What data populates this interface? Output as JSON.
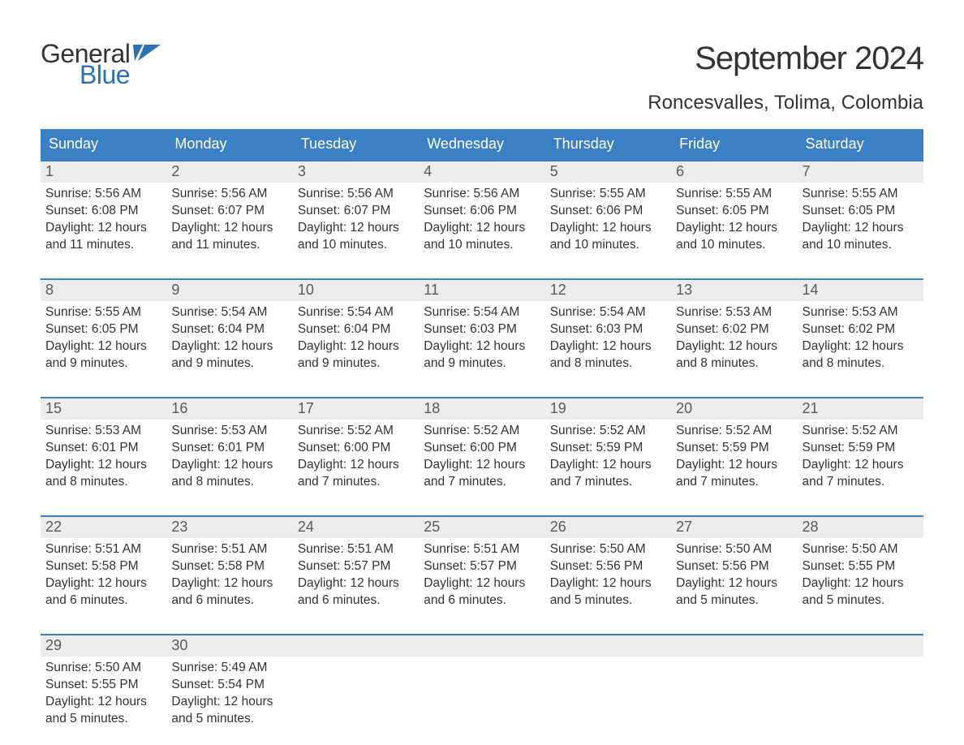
{
  "logo": {
    "word1": "General",
    "word2": "Blue",
    "word1_color": "#333333",
    "word2_color": "#2a72b5",
    "flag_color": "#2a72b5"
  },
  "title": "September 2024",
  "location": "Roncesvalles, Tolima, Colombia",
  "colors": {
    "header_bg": "#3b7fc4",
    "header_text": "#ffffff",
    "daynum_bg": "#ececec",
    "daynum_text": "#5a5a5a",
    "body_text": "#333333",
    "week_border": "#3b7fc4",
    "page_bg": "#ffffff"
  },
  "fonts": {
    "title_size_pt": 30,
    "location_size_pt": 18,
    "header_size_pt": 14,
    "daynum_size_pt": 14,
    "body_size_pt": 12,
    "family": "Arial"
  },
  "day_headers": [
    "Sunday",
    "Monday",
    "Tuesday",
    "Wednesday",
    "Thursday",
    "Friday",
    "Saturday"
  ],
  "weeks": [
    [
      {
        "num": "1",
        "sunrise": "Sunrise: 5:56 AM",
        "sunset": "Sunset: 6:08 PM",
        "daylight": "Daylight: 12 hours and 11 minutes."
      },
      {
        "num": "2",
        "sunrise": "Sunrise: 5:56 AM",
        "sunset": "Sunset: 6:07 PM",
        "daylight": "Daylight: 12 hours and 11 minutes."
      },
      {
        "num": "3",
        "sunrise": "Sunrise: 5:56 AM",
        "sunset": "Sunset: 6:07 PM",
        "daylight": "Daylight: 12 hours and 10 minutes."
      },
      {
        "num": "4",
        "sunrise": "Sunrise: 5:56 AM",
        "sunset": "Sunset: 6:06 PM",
        "daylight": "Daylight: 12 hours and 10 minutes."
      },
      {
        "num": "5",
        "sunrise": "Sunrise: 5:55 AM",
        "sunset": "Sunset: 6:06 PM",
        "daylight": "Daylight: 12 hours and 10 minutes."
      },
      {
        "num": "6",
        "sunrise": "Sunrise: 5:55 AM",
        "sunset": "Sunset: 6:05 PM",
        "daylight": "Daylight: 12 hours and 10 minutes."
      },
      {
        "num": "7",
        "sunrise": "Sunrise: 5:55 AM",
        "sunset": "Sunset: 6:05 PM",
        "daylight": "Daylight: 12 hours and 10 minutes."
      }
    ],
    [
      {
        "num": "8",
        "sunrise": "Sunrise: 5:55 AM",
        "sunset": "Sunset: 6:05 PM",
        "daylight": "Daylight: 12 hours and 9 minutes."
      },
      {
        "num": "9",
        "sunrise": "Sunrise: 5:54 AM",
        "sunset": "Sunset: 6:04 PM",
        "daylight": "Daylight: 12 hours and 9 minutes."
      },
      {
        "num": "10",
        "sunrise": "Sunrise: 5:54 AM",
        "sunset": "Sunset: 6:04 PM",
        "daylight": "Daylight: 12 hours and 9 minutes."
      },
      {
        "num": "11",
        "sunrise": "Sunrise: 5:54 AM",
        "sunset": "Sunset: 6:03 PM",
        "daylight": "Daylight: 12 hours and 9 minutes."
      },
      {
        "num": "12",
        "sunrise": "Sunrise: 5:54 AM",
        "sunset": "Sunset: 6:03 PM",
        "daylight": "Daylight: 12 hours and 8 minutes."
      },
      {
        "num": "13",
        "sunrise": "Sunrise: 5:53 AM",
        "sunset": "Sunset: 6:02 PM",
        "daylight": "Daylight: 12 hours and 8 minutes."
      },
      {
        "num": "14",
        "sunrise": "Sunrise: 5:53 AM",
        "sunset": "Sunset: 6:02 PM",
        "daylight": "Daylight: 12 hours and 8 minutes."
      }
    ],
    [
      {
        "num": "15",
        "sunrise": "Sunrise: 5:53 AM",
        "sunset": "Sunset: 6:01 PM",
        "daylight": "Daylight: 12 hours and 8 minutes."
      },
      {
        "num": "16",
        "sunrise": "Sunrise: 5:53 AM",
        "sunset": "Sunset: 6:01 PM",
        "daylight": "Daylight: 12 hours and 8 minutes."
      },
      {
        "num": "17",
        "sunrise": "Sunrise: 5:52 AM",
        "sunset": "Sunset: 6:00 PM",
        "daylight": "Daylight: 12 hours and 7 minutes."
      },
      {
        "num": "18",
        "sunrise": "Sunrise: 5:52 AM",
        "sunset": "Sunset: 6:00 PM",
        "daylight": "Daylight: 12 hours and 7 minutes."
      },
      {
        "num": "19",
        "sunrise": "Sunrise: 5:52 AM",
        "sunset": "Sunset: 5:59 PM",
        "daylight": "Daylight: 12 hours and 7 minutes."
      },
      {
        "num": "20",
        "sunrise": "Sunrise: 5:52 AM",
        "sunset": "Sunset: 5:59 PM",
        "daylight": "Daylight: 12 hours and 7 minutes."
      },
      {
        "num": "21",
        "sunrise": "Sunrise: 5:52 AM",
        "sunset": "Sunset: 5:59 PM",
        "daylight": "Daylight: 12 hours and 7 minutes."
      }
    ],
    [
      {
        "num": "22",
        "sunrise": "Sunrise: 5:51 AM",
        "sunset": "Sunset: 5:58 PM",
        "daylight": "Daylight: 12 hours and 6 minutes."
      },
      {
        "num": "23",
        "sunrise": "Sunrise: 5:51 AM",
        "sunset": "Sunset: 5:58 PM",
        "daylight": "Daylight: 12 hours and 6 minutes."
      },
      {
        "num": "24",
        "sunrise": "Sunrise: 5:51 AM",
        "sunset": "Sunset: 5:57 PM",
        "daylight": "Daylight: 12 hours and 6 minutes."
      },
      {
        "num": "25",
        "sunrise": "Sunrise: 5:51 AM",
        "sunset": "Sunset: 5:57 PM",
        "daylight": "Daylight: 12 hours and 6 minutes."
      },
      {
        "num": "26",
        "sunrise": "Sunrise: 5:50 AM",
        "sunset": "Sunset: 5:56 PM",
        "daylight": "Daylight: 12 hours and 5 minutes."
      },
      {
        "num": "27",
        "sunrise": "Sunrise: 5:50 AM",
        "sunset": "Sunset: 5:56 PM",
        "daylight": "Daylight: 12 hours and 5 minutes."
      },
      {
        "num": "28",
        "sunrise": "Sunrise: 5:50 AM",
        "sunset": "Sunset: 5:55 PM",
        "daylight": "Daylight: 12 hours and 5 minutes."
      }
    ],
    [
      {
        "num": "29",
        "sunrise": "Sunrise: 5:50 AM",
        "sunset": "Sunset: 5:55 PM",
        "daylight": "Daylight: 12 hours and 5 minutes."
      },
      {
        "num": "30",
        "sunrise": "Sunrise: 5:49 AM",
        "sunset": "Sunset: 5:54 PM",
        "daylight": "Daylight: 12 hours and 5 minutes."
      },
      {
        "num": "",
        "sunrise": "",
        "sunset": "",
        "daylight": ""
      },
      {
        "num": "",
        "sunrise": "",
        "sunset": "",
        "daylight": ""
      },
      {
        "num": "",
        "sunrise": "",
        "sunset": "",
        "daylight": ""
      },
      {
        "num": "",
        "sunrise": "",
        "sunset": "",
        "daylight": ""
      },
      {
        "num": "",
        "sunrise": "",
        "sunset": "",
        "daylight": ""
      }
    ]
  ]
}
